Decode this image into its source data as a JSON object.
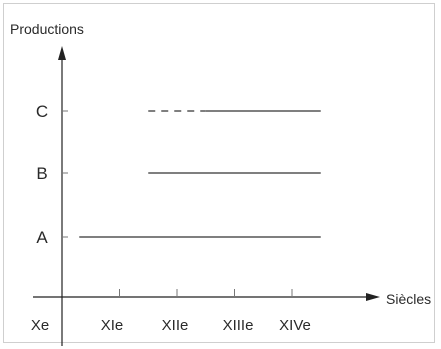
{
  "chart_data": {
    "type": "timeline",
    "ylabel": "Productions",
    "xlabel": "Siècles",
    "x_ticks": [
      "Xe",
      "XIe",
      "XIIe",
      "XIIIe",
      "XIVe"
    ],
    "xlim": [
      10,
      14.5
    ],
    "categories": [
      "A",
      "B",
      "C"
    ],
    "series": [
      {
        "category": "A",
        "segments": [
          {
            "from": 10.3,
            "to": 14.5,
            "style": "solid"
          }
        ]
      },
      {
        "category": "B",
        "segments": [
          {
            "from": 11.5,
            "to": 14.5,
            "style": "solid"
          }
        ]
      },
      {
        "category": "C",
        "segments": [
          {
            "from": 11.5,
            "to": 12.5,
            "style": "dashed"
          },
          {
            "from": 12.5,
            "to": 14.5,
            "style": "solid"
          }
        ]
      }
    ],
    "colors": {
      "axis": "#222222",
      "lines": "#333333",
      "frame": "#cfcfcf"
    }
  }
}
